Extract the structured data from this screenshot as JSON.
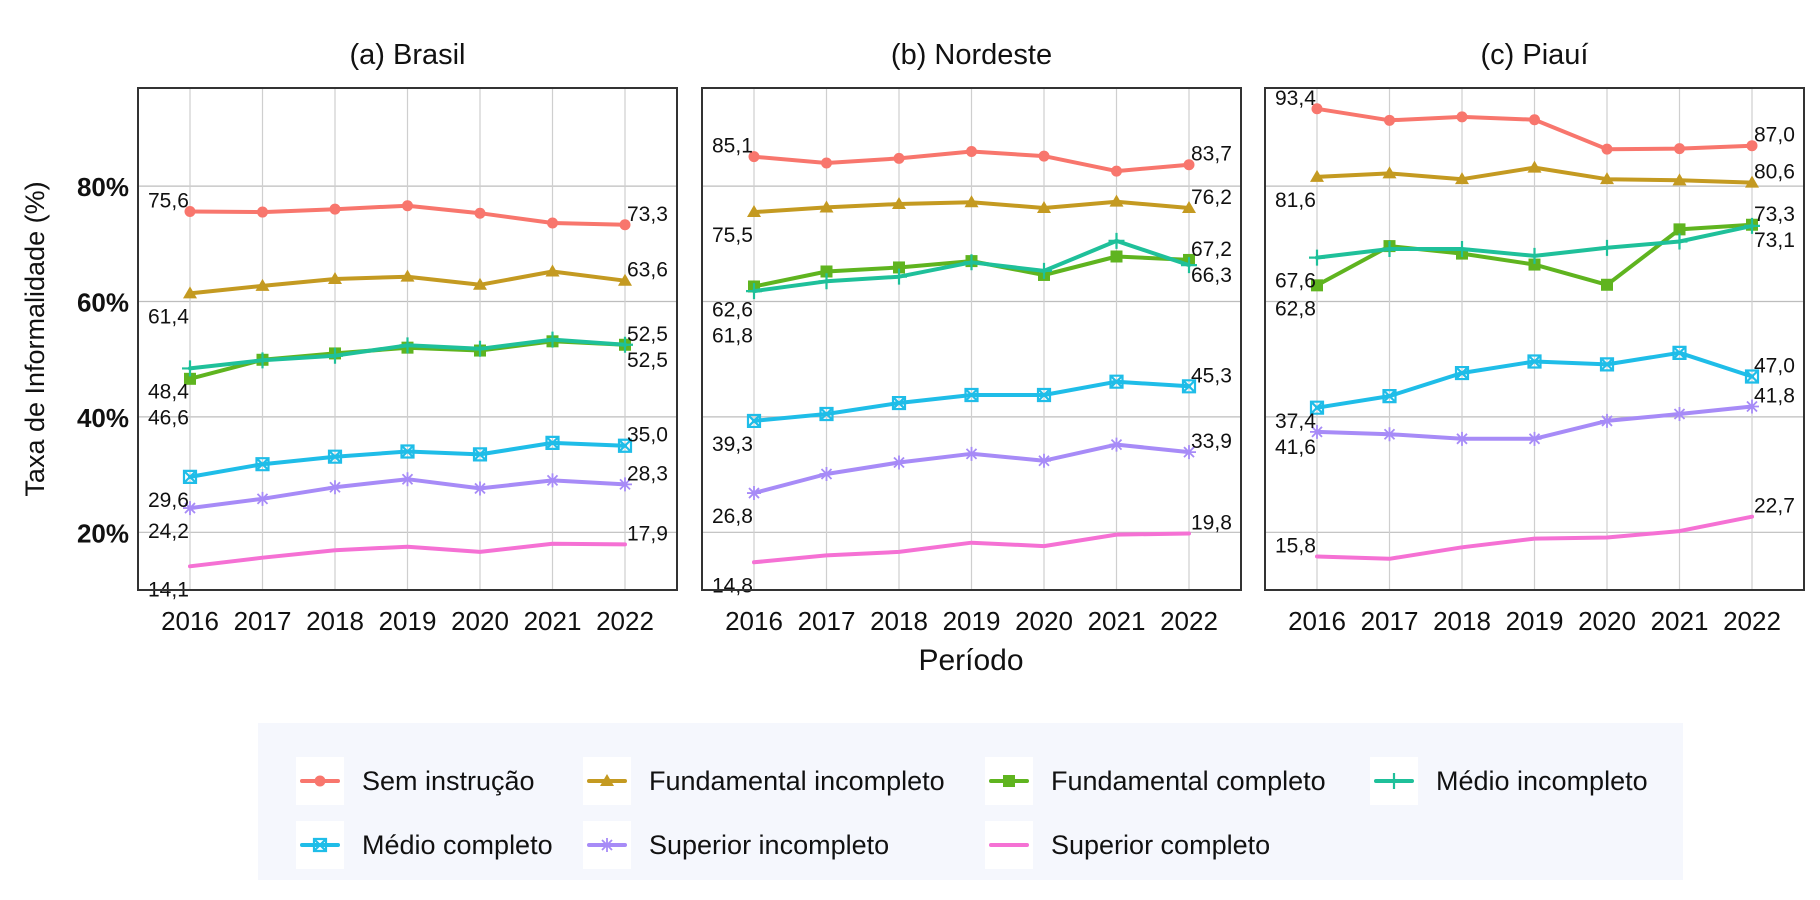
{
  "chart_data": {
    "type": "line",
    "ylabel": "Taxa de Informalidade (%)",
    "xlabel": "Período",
    "y_ticks": [
      "20%",
      "40%",
      "60%",
      "80%"
    ],
    "ylim": [
      10,
      97
    ],
    "x": [
      2016,
      2017,
      2018,
      2019,
      2020,
      2021,
      2022
    ],
    "legend_placement": "bottom",
    "colors": {
      "Sem instrução": "#f8766d",
      "Fundamental incompleto": "#c49a21",
      "Fundamental completo": "#5fb41f",
      "Médio incompleto": "#1fc09a",
      "Médio completo": "#1fbde8",
      "Superior incompleto": "#a78bf7",
      "Superior completo": "#f571d4"
    },
    "markers": {
      "Sem instrução": "circle",
      "Fundamental incompleto": "triangle",
      "Fundamental completo": "square",
      "Médio incompleto": "plus",
      "Médio completo": "boxx",
      "Superior incompleto": "asterisk",
      "Superior completo": "none"
    },
    "panels": [
      {
        "title": "(a) Brasil",
        "series": [
          {
            "name": "Sem instrução",
            "values": [
              75.6,
              75.5,
              76.0,
              76.6,
              75.3,
              73.6,
              73.3
            ],
            "start_label": "75,6",
            "end_label": "73,3"
          },
          {
            "name": "Fundamental incompleto",
            "values": [
              61.4,
              62.7,
              63.9,
              64.3,
              62.9,
              65.2,
              63.6
            ],
            "start_label": "61,4",
            "end_label": "63,6"
          },
          {
            "name": "Fundamental completo",
            "values": [
              46.6,
              49.9,
              51.0,
              52.0,
              51.5,
              53.1,
              52.5
            ],
            "start_label": "46,6",
            "end_label": "52,5"
          },
          {
            "name": "Médio incompleto",
            "values": [
              48.4,
              49.8,
              50.6,
              52.4,
              51.8,
              53.4,
              52.5
            ],
            "start_label": "48,4",
            "end_label": "52,5"
          },
          {
            "name": "Médio completo",
            "values": [
              29.6,
              31.8,
              33.1,
              34.0,
              33.5,
              35.5,
              35.0
            ],
            "start_label": "29,6",
            "end_label": "35,0"
          },
          {
            "name": "Superior incompleto",
            "values": [
              24.2,
              25.8,
              27.8,
              29.2,
              27.6,
              29.0,
              28.3
            ],
            "start_label": "24,2",
            "end_label": "28,3"
          },
          {
            "name": "Superior completo",
            "values": [
              14.1,
              15.6,
              16.9,
              17.5,
              16.6,
              18.0,
              17.9
            ],
            "start_label": "14,1",
            "end_label": "17,9"
          }
        ]
      },
      {
        "title": "(b) Nordeste",
        "series": [
          {
            "name": "Sem instrução",
            "values": [
              85.1,
              84.0,
              84.8,
              86.0,
              85.2,
              82.6,
              83.7
            ],
            "start_label": "85,1",
            "end_label": "83,7"
          },
          {
            "name": "Fundamental incompleto",
            "values": [
              75.5,
              76.3,
              76.9,
              77.2,
              76.2,
              77.3,
              76.2
            ],
            "start_label": "75,5",
            "end_label": "76,2"
          },
          {
            "name": "Fundamental completo",
            "values": [
              62.6,
              65.2,
              65.9,
              67.0,
              64.6,
              67.8,
              67.2
            ],
            "start_label": "62,6",
            "end_label": "67,2"
          },
          {
            "name": "Médio incompleto",
            "values": [
              61.8,
              63.5,
              64.3,
              66.8,
              65.3,
              70.5,
              66.3
            ],
            "start_label": "61,8",
            "end_label": "66,3"
          },
          {
            "name": "Médio completo",
            "values": [
              39.3,
              40.5,
              42.4,
              43.8,
              43.8,
              46.1,
              45.3
            ],
            "start_label": "39,3",
            "end_label": "45,3"
          },
          {
            "name": "Superior incompleto",
            "values": [
              26.8,
              30.1,
              32.1,
              33.6,
              32.4,
              35.2,
              33.9
            ],
            "start_label": "26,8",
            "end_label": "33,9"
          },
          {
            "name": "Superior completo",
            "values": [
              14.8,
              16.0,
              16.6,
              18.2,
              17.6,
              19.6,
              19.8
            ],
            "start_label": "14,8",
            "end_label": "19,8"
          }
        ]
      },
      {
        "title": "(c) Piauí",
        "series": [
          {
            "name": "Sem instrução",
            "values": [
              93.4,
              91.4,
              92.0,
              91.5,
              86.4,
              86.5,
              87.0
            ],
            "start_label": "93,4",
            "end_label": "87,0"
          },
          {
            "name": "Fundamental incompleto",
            "values": [
              81.6,
              82.2,
              81.2,
              83.2,
              81.2,
              81.0,
              80.6
            ],
            "start_label": "81,6",
            "end_label": "80,6"
          },
          {
            "name": "Fundamental completo",
            "values": [
              62.8,
              69.6,
              68.3,
              66.4,
              62.9,
              72.5,
              73.3
            ],
            "start_label": "62,8",
            "end_label": "73,3"
          },
          {
            "name": "Médio incompleto",
            "values": [
              67.6,
              69.1,
              69.1,
              67.9,
              69.3,
              70.4,
              73.1
            ],
            "start_label": "67,6",
            "end_label": "73,1"
          },
          {
            "name": "Médio completo",
            "values": [
              41.6,
              43.6,
              47.6,
              49.6,
              49.1,
              51.1,
              47.0
            ],
            "start_label": "41,6",
            "end_label": "47,0"
          },
          {
            "name": "Superior incompleto",
            "values": [
              37.4,
              37.0,
              36.2,
              36.2,
              39.3,
              40.5,
              41.8
            ],
            "start_label": "37,4",
            "end_label": "41,8"
          },
          {
            "name": "Superior completo",
            "values": [
              15.8,
              15.4,
              17.4,
              18.9,
              19.1,
              20.2,
              22.7
            ],
            "start_label": "15,8",
            "end_label": "22,7"
          }
        ]
      }
    ]
  },
  "legend": {
    "items": [
      {
        "label": "Sem instrução"
      },
      {
        "label": "Fundamental incompleto"
      },
      {
        "label": "Fundamental completo"
      },
      {
        "label": "Médio incompleto"
      },
      {
        "label": "Médio completo"
      },
      {
        "label": "Superior incompleto"
      },
      {
        "label": "Superior completo"
      }
    ]
  }
}
